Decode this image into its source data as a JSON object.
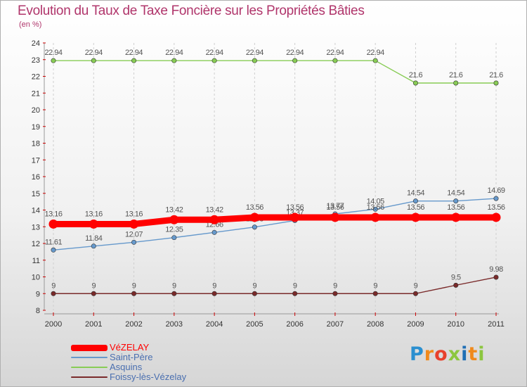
{
  "chart_data": {
    "type": "line",
    "title": "Evolution du Taux de Taxe Foncière sur les Propriétés Bâties",
    "ylabel": "(en %)",
    "xlabel": "",
    "x": [
      2000,
      2001,
      2002,
      2003,
      2004,
      2005,
      2006,
      2007,
      2008,
      2009,
      2010,
      2011
    ],
    "ylim": [
      8,
      24
    ],
    "yticks": [
      8,
      9,
      10,
      11,
      12,
      13,
      14,
      15,
      16,
      17,
      18,
      19,
      20,
      21,
      22,
      23,
      24
    ],
    "series": [
      {
        "name": "VéZELAY",
        "color": "#ff0000",
        "values": [
          13.16,
          13.16,
          13.16,
          13.42,
          13.42,
          13.56,
          13.56,
          13.56,
          13.56,
          13.56,
          13.56,
          13.56
        ],
        "labels": [
          "13.16",
          "13.16",
          "13.16",
          "13.42",
          "13.42",
          "13.56",
          "13.56",
          "13.56",
          "13.56",
          "13.56",
          "13.56",
          "13.56"
        ]
      },
      {
        "name": "Saint-Père",
        "color": "#6699cc",
        "values": [
          11.61,
          11.84,
          12.07,
          12.35,
          12.66,
          12.98,
          13.37,
          13.77,
          14.05,
          14.54,
          14.54,
          14.69
        ],
        "labels": [
          "11.61",
          "11.84",
          "12.07",
          "12.35",
          "12.66",
          "12.98",
          "13.37",
          "13.77",
          "14.05",
          "14.54",
          "14.54",
          "14.69"
        ]
      },
      {
        "name": "Asquins",
        "color": "#88cc55",
        "values": [
          22.94,
          22.94,
          22.94,
          22.94,
          22.94,
          22.94,
          22.94,
          22.94,
          22.94,
          21.6,
          21.6,
          21.6
        ],
        "labels": [
          "22.94",
          "22.94",
          "22.94",
          "22.94",
          "22.94",
          "22.94",
          "22.94",
          "22.94",
          "22.94",
          "21.6",
          "21.6",
          "21.6"
        ]
      },
      {
        "name": "Foissy-lès-Vézelay",
        "color": "#7a2a2a",
        "values": [
          9,
          9,
          9,
          9,
          9,
          9,
          9,
          9,
          9,
          9,
          9.5,
          9.98
        ],
        "labels": [
          "9",
          "9",
          "9",
          "9",
          "9",
          "9",
          "9",
          "9",
          "9",
          "9",
          "9.5",
          "9.98"
        ]
      }
    ]
  },
  "logo": {
    "letters": [
      "P",
      "r",
      "o",
      "x",
      "i",
      "t",
      "i"
    ],
    "colors": [
      "#2a8fd0",
      "#f08a1c",
      "#e8412c",
      "#8cc63f",
      "#1f6fb5",
      "#f08a1c",
      "#8cc63f"
    ]
  }
}
